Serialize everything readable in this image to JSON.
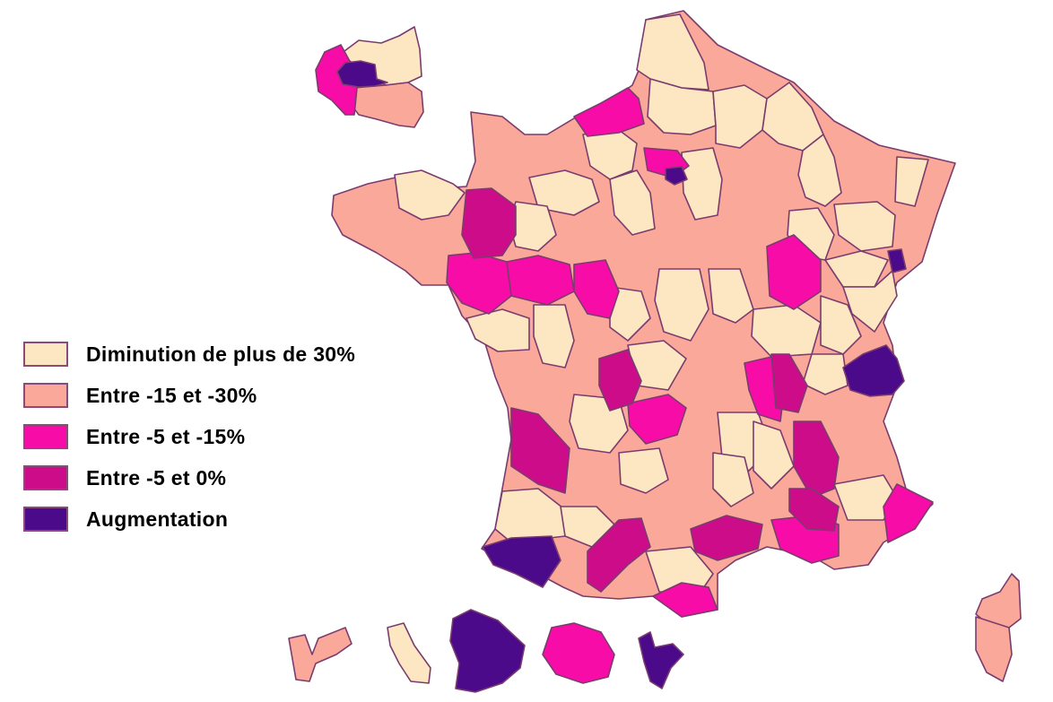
{
  "legend": {
    "items": [
      {
        "label": "Diminution de plus de 30%",
        "color": "#fde6c2"
      },
      {
        "label": "Entre -15 et -30%",
        "color": "#f9a899"
      },
      {
        "label": "Entre -5 et -15%",
        "color": "#f70ca8"
      },
      {
        "label": "Entre -5 et 0%",
        "color": "#cc0c89"
      },
      {
        "label": "Augmentation",
        "color": "#4b0a8a"
      }
    ]
  }
}
